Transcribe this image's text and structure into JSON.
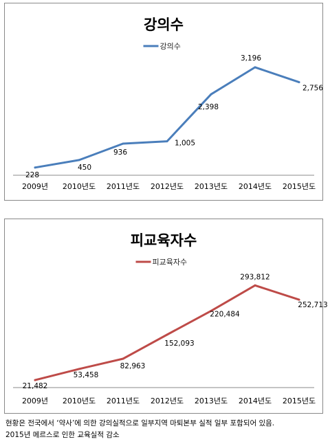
{
  "chart_data": [
    {
      "type": "line",
      "title": "강의수",
      "legend_position": "top",
      "categories": [
        "2009년",
        "2010년도",
        "2011년도",
        "2012년도",
        "2013년도",
        "2014년도",
        "2015년도"
      ],
      "series": [
        {
          "name": "강의수",
          "color": "#4a7ebb",
          "values": [
            228,
            450,
            936,
            1005,
            2398,
            3196,
            2756
          ],
          "labels": [
            "228",
            "450",
            "936",
            "1,005",
            "2,398",
            "3,196",
            "2,756"
          ]
        }
      ],
      "ylim": [
        0,
        3500
      ],
      "grid": false
    },
    {
      "type": "line",
      "title": "피교육자수",
      "legend_position": "top",
      "categories": [
        "2009년",
        "2010년도",
        "2011년도",
        "2012년도",
        "2013년도",
        "2014년도",
        "2015년도"
      ],
      "series": [
        {
          "name": "피교육자수",
          "color": "#be4b48",
          "values": [
            21482,
            53458,
            82963,
            152093,
            220484,
            293812,
            252713
          ],
          "labels": [
            "21,482",
            "53,458",
            "82,963",
            "152,093",
            "220,484",
            "293,812",
            "252,713"
          ]
        }
      ],
      "ylim": [
        0,
        330000
      ],
      "grid": false
    }
  ],
  "footnote": {
    "line1": "현황은 전국에서 ‘약사’에 의한 강의실적으로 일부지역 마퇴본부 실적 일부 포함되어 있음.",
    "line2": "2015년 메르스로 인한 교육실적 감소"
  }
}
